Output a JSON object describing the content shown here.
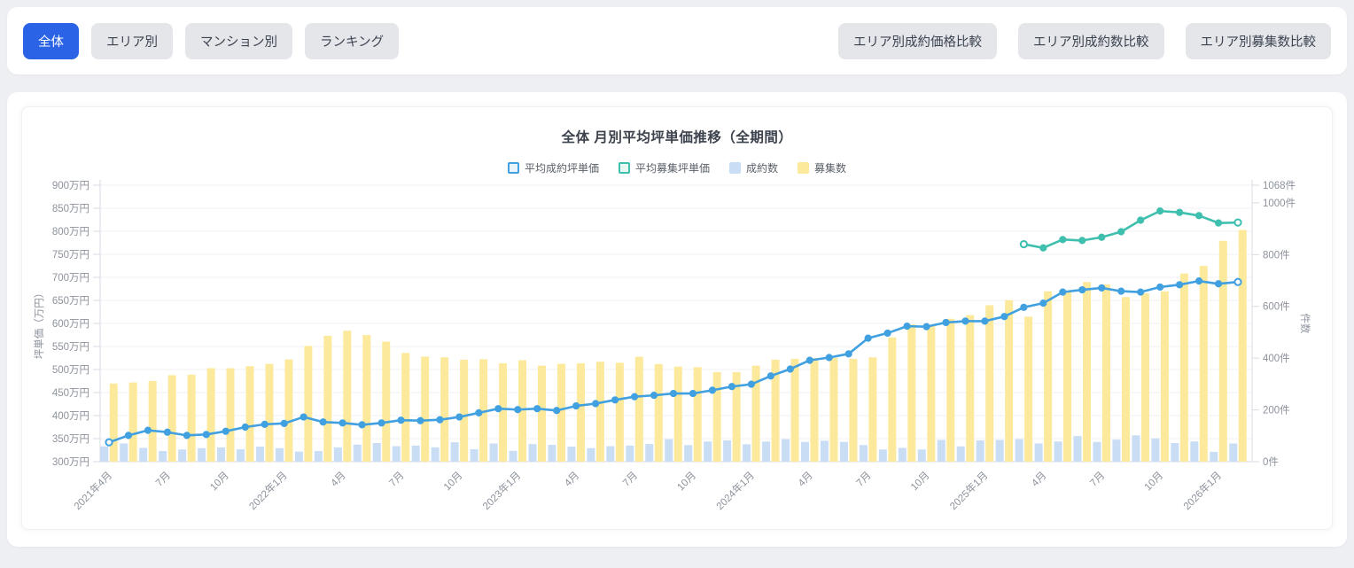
{
  "toolbar": {
    "view_tabs": [
      {
        "label": "全体",
        "active": true
      },
      {
        "label": "エリア別",
        "active": false
      },
      {
        "label": "マンション別",
        "active": false
      },
      {
        "label": "ランキング",
        "active": false
      }
    ],
    "compare_buttons": [
      {
        "label": "エリア別成約価格比較"
      },
      {
        "label": "エリア別成約数比較"
      },
      {
        "label": "エリア別募集数比較"
      }
    ]
  },
  "colors": {
    "active_tab": "#2a63e6",
    "tab_bg": "#e4e6ea",
    "grid": "#f0f1f4",
    "axis_line": "#d9dbe0",
    "tick_text": "#8d929c"
  },
  "chart_data": {
    "type": "combo",
    "title": "全体 月別平均坪単価推移（全期間）",
    "categories": [
      "2021年4月",
      "2021年5月",
      "2021年6月",
      "2021年7月",
      "2021年8月",
      "2021年9月",
      "2021年10月",
      "2021年11月",
      "2021年12月",
      "2022年1月",
      "2022年2月",
      "2022年3月",
      "2022年4月",
      "2022年5月",
      "2022年6月",
      "2022年7月",
      "2022年8月",
      "2022年9月",
      "2022年10月",
      "2022年11月",
      "2022年12月",
      "2023年1月",
      "2023年2月",
      "2023年3月",
      "2023年4月",
      "2023年5月",
      "2023年6月",
      "2023年7月",
      "2023年8月",
      "2023年9月",
      "2023年10月",
      "2023年11月",
      "2023年12月",
      "2024年1月",
      "2024年2月",
      "2024年3月",
      "2024年4月",
      "2024年5月",
      "2024年6月",
      "2024年7月",
      "2024年8月",
      "2024年9月",
      "2024年10月",
      "2024年11月",
      "2024年12月",
      "2025年1月",
      "2025年2月",
      "2025年3月",
      "2025年4月",
      "2025年5月",
      "2025年6月",
      "2025年7月",
      "2025年8月",
      "2025年9月",
      "2025年10月",
      "2025年11月",
      "2025年12月",
      "2026年1月",
      "2026年2月"
    ],
    "x_ticks": [
      {
        "index": 0,
        "label": "2021年4月"
      },
      {
        "index": 3,
        "label": "7月"
      },
      {
        "index": 6,
        "label": "10月"
      },
      {
        "index": 9,
        "label": "2022年1月"
      },
      {
        "index": 12,
        "label": "4月"
      },
      {
        "index": 15,
        "label": "7月"
      },
      {
        "index": 18,
        "label": "10月"
      },
      {
        "index": 21,
        "label": "2023年1月"
      },
      {
        "index": 24,
        "label": "4月"
      },
      {
        "index": 27,
        "label": "7月"
      },
      {
        "index": 30,
        "label": "10月"
      },
      {
        "index": 33,
        "label": "2024年1月"
      },
      {
        "index": 36,
        "label": "4月"
      },
      {
        "index": 39,
        "label": "7月"
      },
      {
        "index": 42,
        "label": "10月"
      },
      {
        "index": 45,
        "label": "2025年1月"
      },
      {
        "index": 48,
        "label": "4月"
      },
      {
        "index": 51,
        "label": "7月"
      },
      {
        "index": 54,
        "label": "10月"
      },
      {
        "index": 57,
        "label": "2026年1月"
      }
    ],
    "y_left": {
      "label": "坪単価（万円）",
      "min": 300,
      "max": 900,
      "step": 50,
      "unit": "万円"
    },
    "y_right": {
      "label": "件数",
      "min": 0,
      "max": 1068,
      "ticks": [
        0,
        200,
        400,
        600,
        800,
        1000,
        1068
      ],
      "unit": "件"
    },
    "legend_position": "top",
    "grid": "horizontal-only",
    "series": [
      {
        "name": "平均成約坪単価",
        "kind": "line",
        "axis": "left",
        "color": "#41a0e0",
        "legend_fill": "#eaf4fc",
        "values": [
          342,
          357,
          368,
          364,
          357,
          359,
          366,
          375,
          381,
          383,
          397,
          386,
          384,
          380,
          384,
          390,
          389,
          391,
          397,
          406,
          415,
          413,
          415,
          411,
          421,
          426,
          434,
          441,
          444,
          448,
          448,
          455,
          463,
          468,
          486,
          501,
          520,
          526,
          534,
          568,
          579,
          594,
          593,
          602,
          605,
          605,
          615,
          635,
          644,
          668,
          673,
          677,
          670,
          668,
          679,
          684,
          692,
          686,
          690
        ]
      },
      {
        "name": "平均募集坪単価",
        "kind": "line",
        "axis": "left",
        "color": "#3fbfae",
        "legend_fill": "#e8f8f5",
        "values": [
          null,
          null,
          null,
          null,
          null,
          null,
          null,
          null,
          null,
          null,
          null,
          null,
          null,
          null,
          null,
          null,
          null,
          null,
          null,
          null,
          null,
          null,
          null,
          null,
          null,
          null,
          null,
          null,
          null,
          null,
          null,
          null,
          null,
          null,
          null,
          null,
          null,
          null,
          null,
          null,
          null,
          null,
          null,
          null,
          null,
          null,
          null,
          772,
          764,
          782,
          780,
          787,
          799,
          824,
          844,
          841,
          834,
          818,
          819
        ]
      },
      {
        "name": "成約数",
        "kind": "bar",
        "axis": "right",
        "color": "#c9ddf4",
        "legend_fill": "#c9ddf4",
        "values": [
          59,
          70,
          53,
          41,
          47,
          52,
          55,
          48,
          58,
          52,
          39,
          41,
          55,
          66,
          72,
          60,
          62,
          55,
          75,
          48,
          70,
          42,
          68,
          65,
          58,
          52,
          60,
          62,
          68,
          87,
          64,
          78,
          82,
          67,
          78,
          87,
          76,
          81,
          76,
          64,
          47,
          53,
          47,
          84,
          59,
          82,
          84,
          87,
          70,
          78,
          99,
          76,
          85,
          102,
          90,
          72,
          78,
          38,
          70
        ]
      },
      {
        "name": "募集数",
        "kind": "bar",
        "axis": "right",
        "color": "#fce99c",
        "legend_fill": "#fce99c",
        "values": [
          302,
          306,
          312,
          334,
          336,
          361,
          361,
          369,
          378,
          395,
          447,
          486,
          506,
          489,
          464,
          420,
          406,
          403,
          394,
          396,
          380,
          392,
          371,
          378,
          380,
          386,
          382,
          405,
          377,
          367,
          365,
          346,
          346,
          371,
          394,
          397,
          400,
          401,
          397,
          403,
          480,
          530,
          524,
          552,
          566,
          604,
          624,
          560,
          658,
          661,
          694,
          685,
          636,
          650,
          658,
          727,
          756,
          853,
          895
        ]
      }
    ]
  }
}
